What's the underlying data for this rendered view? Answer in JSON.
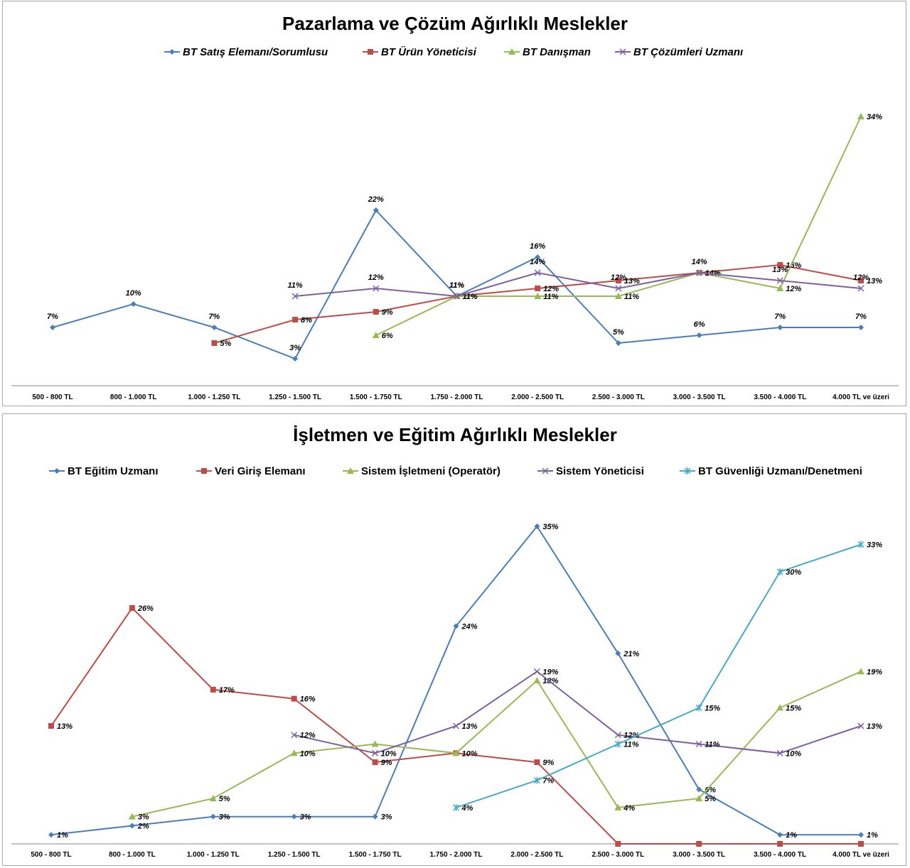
{
  "chart_data": [
    {
      "type": "line",
      "title": "Pazarlama ve Çözüm Ağırlıklı Meslekler",
      "legend_position": "top",
      "legend_italic": true,
      "categories": [
        "500 - 800 TL",
        "800 - 1.000 TL",
        "1.000 - 1.250 TL",
        "1.250 - 1.500 TL",
        "1.500 - 1.750 TL",
        "1.750 - 2.000 TL",
        "2.000 - 2.500 TL",
        "2.500 - 3.000 TL",
        "3.000 - 3.500 TL",
        "3.500 - 4.000 TL",
        "4.000 TL ve üzeri"
      ],
      "ylim": [
        0,
        0.39
      ],
      "grid": false,
      "series": [
        {
          "name": "BT Satış Elemanı/Sorumlusu",
          "color": "#4a7ebb",
          "marker": "diamond",
          "values": [
            0.07,
            0.1,
            0.07,
            0.03,
            0.22,
            0.11,
            0.16,
            0.05,
            0.06,
            0.07,
            0.07
          ],
          "labels": [
            "7%",
            "10%",
            "7%",
            "3%",
            "22%",
            "11%",
            "16%",
            "5%",
            "6%",
            "7%",
            "7%"
          ]
        },
        {
          "name": "BT Ürün Yöneticisi",
          "color": "#be4b48",
          "marker": "square",
          "values": [
            null,
            null,
            0.05,
            0.08,
            0.09,
            0.11,
            0.12,
            0.13,
            0.14,
            0.15,
            0.13
          ],
          "labels": [
            null,
            null,
            "5%",
            "8%",
            "9%",
            "11%",
            "12%",
            "13%",
            "14%",
            "15%",
            "13%"
          ]
        },
        {
          "name": "BT Danışman",
          "color": "#98b954",
          "marker": "triangle",
          "values": [
            null,
            null,
            null,
            null,
            0.06,
            0.11,
            0.11,
            0.11,
            0.14,
            0.12,
            0.34
          ],
          "labels": [
            null,
            null,
            null,
            null,
            "6%",
            "11%",
            "11%",
            "11%",
            "14%",
            "12%",
            "34%"
          ]
        },
        {
          "name": "BT Çözümleri Uzmanı",
          "color": "#7d60a0",
          "marker": "x",
          "values": [
            null,
            null,
            null,
            0.11,
            0.12,
            0.11,
            0.14,
            0.12,
            0.14,
            0.13,
            0.12
          ],
          "labels": [
            null,
            null,
            null,
            "11%",
            "12%",
            "11%",
            "14%",
            "12%",
            "14%",
            "13%",
            "12%"
          ]
        }
      ]
    },
    {
      "type": "line",
      "title": "İşletmen ve Eğitim Ağırlıklı Meslekler",
      "legend_position": "top",
      "legend_italic": false,
      "categories": [
        "500 - 800 TL",
        "800 - 1.000 TL",
        "1.000 - 1.250 TL",
        "1.250 - 1.500 TL",
        "1.500 - 1.750 TL",
        "1.750 - 2.000 TL",
        "2.000 - 2.500 TL",
        "2.500 - 3.000 TL",
        "3.000 - 3.500 TL",
        "3.500 - 4.000 TL",
        "4.000 TL ve üzeri"
      ],
      "ylim": [
        0,
        0.38
      ],
      "grid": false,
      "series": [
        {
          "name": "BT Eğitim Uzmanı",
          "color": "#4a7ebb",
          "marker": "diamond",
          "values": [
            0.01,
            0.02,
            0.03,
            0.03,
            0.03,
            0.24,
            0.35,
            0.21,
            0.06,
            0.01,
            0.01
          ],
          "labels": [
            "1%",
            "2%",
            "3%",
            "3%",
            "3%",
            "24%",
            "35%",
            "21%",
            "6%",
            "1%",
            "1%"
          ]
        },
        {
          "name": "Veri Giriş Elemanı",
          "color": "#be4b48",
          "marker": "square",
          "values": [
            0.13,
            0.26,
            0.17,
            0.16,
            0.09,
            0.1,
            0.09,
            0,
            0,
            0,
            0
          ],
          "labels": [
            "13%",
            "26%",
            "17%",
            "16%",
            "9%",
            "10%",
            "9%",
            null,
            null,
            null,
            null
          ]
        },
        {
          "name": "Sistem İşletmeni (Operatör)",
          "color": "#98b954",
          "marker": "triangle",
          "values": [
            null,
            0.03,
            0.05,
            0.1,
            0.11,
            0.1,
            0.18,
            0.04,
            0.05,
            0.15,
            0.19
          ],
          "labels": [
            null,
            "3%",
            "5%",
            "10%",
            null,
            null,
            "18%",
            "4%",
            "5%",
            "15%",
            "19%"
          ]
        },
        {
          "name": "Sistem Yöneticisi",
          "color": "#7d60a0",
          "marker": "x",
          "values": [
            null,
            null,
            null,
            0.12,
            0.1,
            0.13,
            0.19,
            0.12,
            0.11,
            0.1,
            0.13
          ],
          "labels": [
            null,
            null,
            null,
            "12%",
            "10%",
            "13%",
            "19%",
            "12%",
            "11%",
            "10%",
            "13%"
          ]
        },
        {
          "name": "BT Güvenliği Uzmanı/Denetmeni",
          "color": "#46aac5",
          "marker": "star",
          "values": [
            null,
            null,
            null,
            null,
            null,
            0.04,
            0.07,
            0.11,
            0.15,
            0.3,
            0.33
          ],
          "labels": [
            null,
            null,
            null,
            null,
            null,
            "4%",
            "7%",
            "11%",
            "15%",
            "30%",
            "33%"
          ]
        }
      ]
    }
  ]
}
